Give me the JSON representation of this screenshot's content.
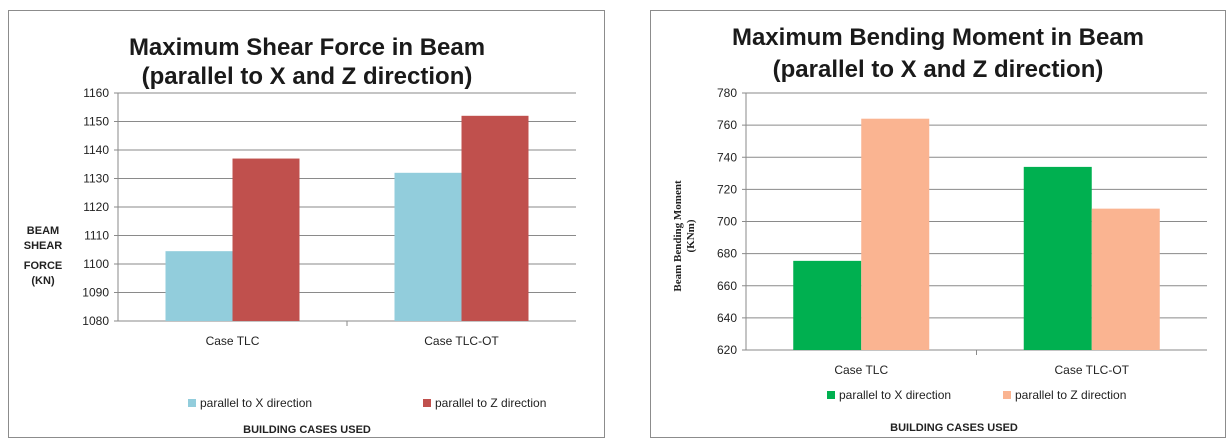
{
  "chart_data": [
    {
      "type": "bar",
      "title_lines": [
        "Maximum Shear Force in Beam",
        "(parallel to X and Z direction)"
      ],
      "categories": [
        "Case TLC",
        "Case TLC-OT"
      ],
      "series": [
        {
          "name": "parallel to X direction",
          "values": [
            1104.5,
            1132
          ]
        },
        {
          "name": "parallel to Z direction",
          "values": [
            1137,
            1152
          ]
        }
      ],
      "ylim": [
        1080,
        1160
      ],
      "yticks": [
        "1080",
        "1090",
        "1100",
        "1110",
        "1120",
        "1130",
        "1140",
        "1150",
        "1160"
      ],
      "ylabel_lines": [
        "BEAM",
        "SHEAR",
        "FORCE",
        "(KN)"
      ],
      "xlabel": "BUILDING CASES USED",
      "grid": true,
      "legend": "bottom",
      "colors": [
        "#92cddc",
        "#c0504d"
      ]
    },
    {
      "type": "bar",
      "title_lines": [
        "Maximum Bending Moment in Beam",
        "(parallel to X and Z direction)"
      ],
      "categories": [
        "Case TLC",
        "Case TLC-OT"
      ],
      "series": [
        {
          "name": "parallel to X direction",
          "values": [
            675.5,
            734
          ]
        },
        {
          "name": "parallel to Z direction",
          "values": [
            764,
            708
          ]
        }
      ],
      "ylim": [
        620,
        780
      ],
      "yticks": [
        "620",
        "640",
        "660",
        "680",
        "700",
        "720",
        "740",
        "760",
        "780"
      ],
      "ylabel_lines": [
        "Beam Bending Moment",
        "(KNm)"
      ],
      "xlabel": "BUILDING CASES USED",
      "grid": true,
      "legend": "bottom",
      "colors": [
        "#00b050",
        "#fab491"
      ]
    }
  ]
}
